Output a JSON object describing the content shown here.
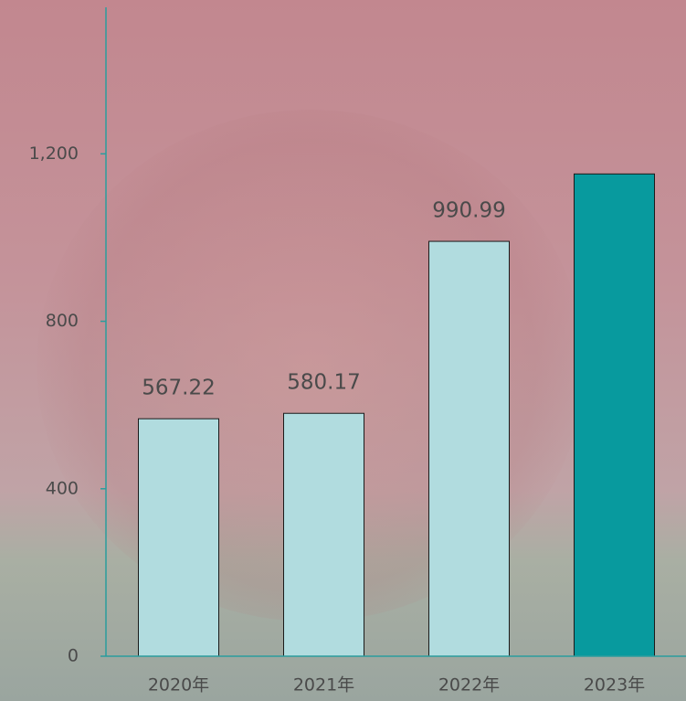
{
  "chart_data": {
    "type": "bar",
    "categories": [
      "2020年",
      "2021年",
      "2022年",
      "2023年"
    ],
    "values": [
      567.22,
      580.17,
      990.99,
      1152
    ],
    "value_labels": [
      "567.22",
      "580.17",
      "990.99",
      null
    ],
    "colors": [
      "#b1dcdf",
      "#b1dcdf",
      "#b1dcdf",
      "#089a9e"
    ],
    "axis_color": "#2a9d9d",
    "ylim": [
      0,
      1550
    ],
    "yticks": [
      0,
      400,
      800,
      {
        "value": 1200,
        "label": "1,200"
      }
    ],
    "grid": false
  }
}
